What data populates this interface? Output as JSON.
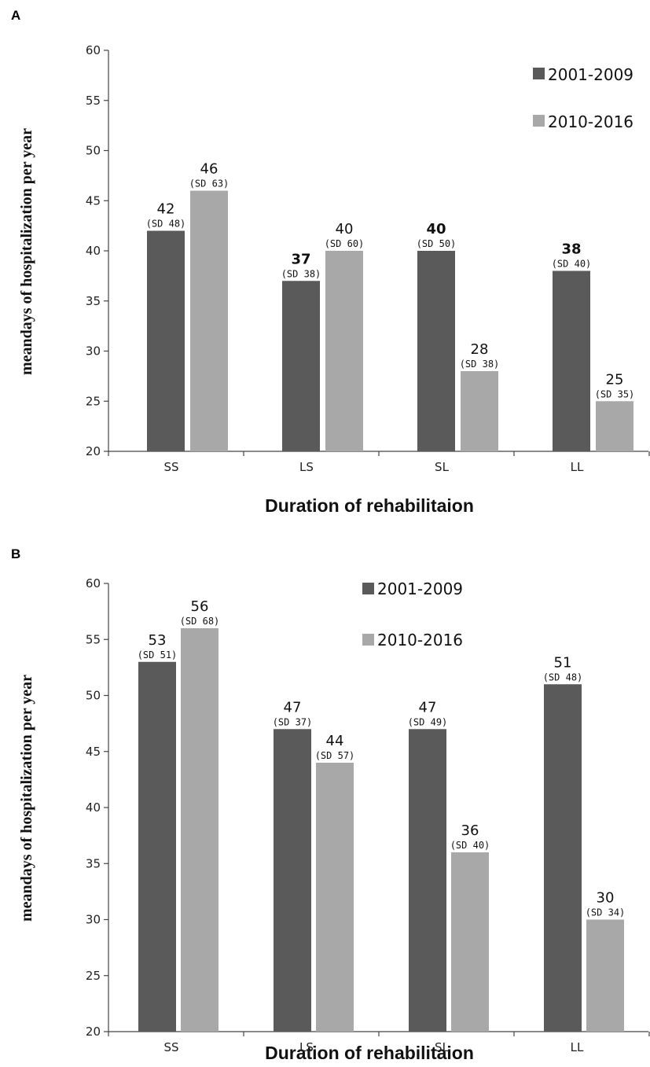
{
  "chart_data": [
    {
      "panel": "A",
      "type": "bar",
      "categories": [
        "SS",
        "LS",
        "SL",
        "LL"
      ],
      "series": [
        {
          "name": "2001-2009",
          "color": "#5a5a5a",
          "values": [
            42,
            37,
            40,
            38
          ],
          "labels": [
            "42",
            "37",
            "40",
            "38"
          ],
          "sd_labels": [
            "(SD 48)",
            "(SD 38)",
            "(SD 50)",
            "(SD 40)"
          ],
          "bold": [
            false,
            true,
            true,
            true
          ]
        },
        {
          "name": "2010-2016",
          "color": "#a8a8a8",
          "values": [
            46,
            40,
            28,
            25
          ],
          "labels": [
            "46",
            "40",
            "28",
            "25"
          ],
          "sd_labels": [
            "(SD 63)",
            "(SD 60)",
            "(SD 38)",
            "(SD 35)"
          ],
          "bold": [
            false,
            false,
            false,
            false
          ]
        }
      ],
      "ylabel": "meandays of hospitalization per year",
      "xlabel": "Duration of rehabilitaion",
      "ylim": [
        20,
        60
      ],
      "yticks": [
        20,
        25,
        30,
        35,
        40,
        45,
        50,
        55,
        60
      ],
      "legend_position": "top-right",
      "grid": false
    },
    {
      "panel": "B",
      "type": "bar",
      "categories": [
        "SS",
        "LS",
        "SL",
        "LL"
      ],
      "series": [
        {
          "name": "2001-2009",
          "color": "#5a5a5a",
          "values": [
            53,
            47,
            47,
            51
          ],
          "labels": [
            "53",
            "47",
            "47",
            "51"
          ],
          "sd_labels": [
            "(SD 51)",
            "(SD 37)",
            "(SD 49)",
            "(SD 48)"
          ],
          "bold": [
            false,
            false,
            false,
            false
          ]
        },
        {
          "name": "2010-2016",
          "color": "#a8a8a8",
          "values": [
            56,
            44,
            36,
            30
          ],
          "labels": [
            "56",
            "44",
            "36",
            "30"
          ],
          "sd_labels": [
            "(SD 68)",
            "(SD 57)",
            "(SD 40)",
            "(SD 34)"
          ],
          "bold": [
            false,
            false,
            false,
            false
          ]
        }
      ],
      "ylabel": "meandays of hospitalization per year",
      "xlabel": "Duration of rehabilitaion",
      "ylim": [
        20,
        60
      ],
      "yticks": [
        20,
        25,
        30,
        35,
        40,
        45,
        50,
        55,
        60
      ],
      "legend_position": "top-center",
      "grid": false
    }
  ]
}
